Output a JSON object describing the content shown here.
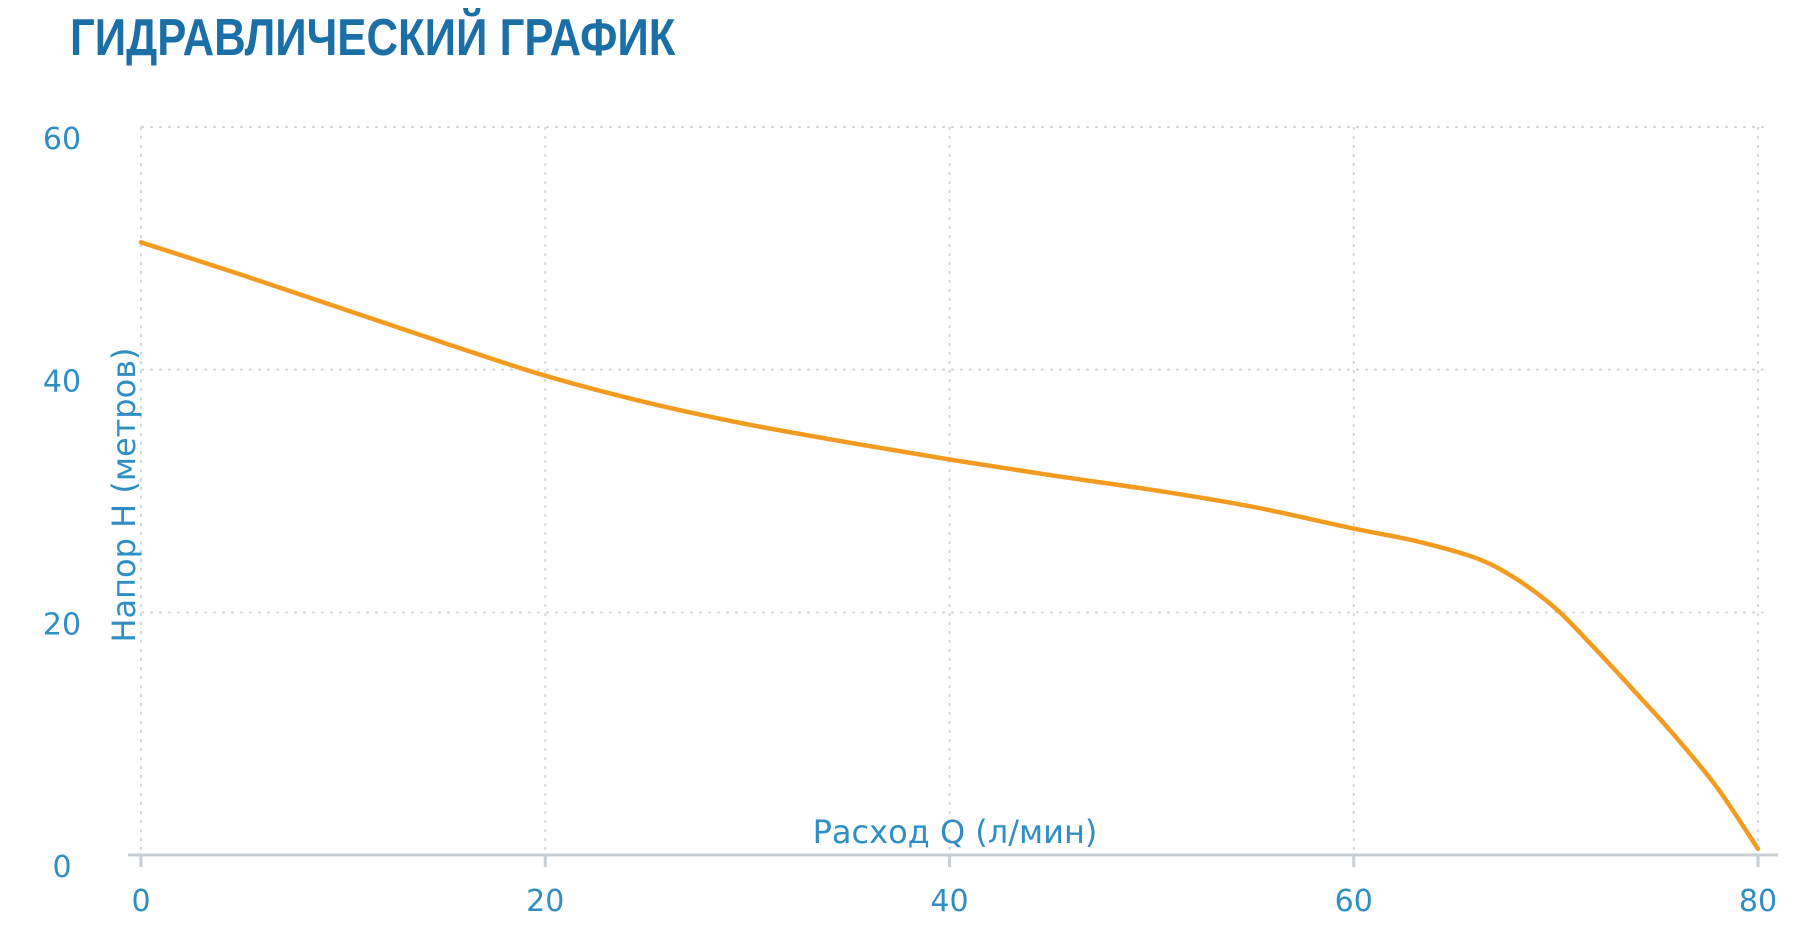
{
  "page": {
    "title": "ГИДРАВЛИЧЕСКИЙ ГРАФИК"
  },
  "colors": {
    "title": "#1a6fa6",
    "text": "#2f8fc4",
    "grid": "#d2d8dd",
    "axis": "#c9cfd4",
    "curve": "#f29b20"
  },
  "chart_data": {
    "type": "line",
    "title": "ГИДРАВЛИЧЕСКИЙ ГРАФИК",
    "xlabel": "Расход Q (л/мин)",
    "ylabel": "Напор H (метров)",
    "xlim": [
      0,
      80
    ],
    "ylim": [
      0,
      60
    ],
    "xticks": [
      0,
      20,
      40,
      60,
      80
    ],
    "yticks": [
      0,
      20,
      40,
      60
    ],
    "xtick_labels": [
      "0",
      "20",
      "40",
      "60",
      "80"
    ],
    "ytick_labels": [
      "0",
      "20",
      "40",
      "60"
    ],
    "grid": true,
    "series": [
      {
        "x": [
          0,
          5,
          10,
          15,
          20,
          25,
          30,
          35,
          40,
          45,
          50,
          55,
          60,
          63,
          66,
          68,
          70,
          72,
          74,
          76,
          78,
          80
        ],
        "y": [
          50.5,
          47.8,
          45.0,
          42.2,
          39.5,
          37.3,
          35.5,
          34.0,
          32.6,
          31.3,
          30.1,
          28.7,
          26.9,
          25.9,
          24.5,
          22.8,
          20.3,
          16.9,
          13.3,
          9.6,
          5.5,
          0.5
        ]
      }
    ]
  }
}
